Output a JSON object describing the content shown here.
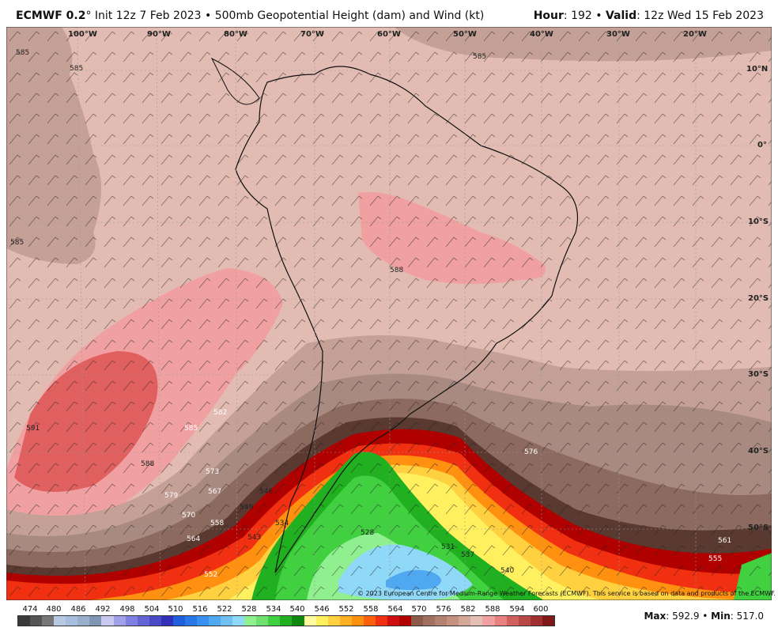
{
  "header": {
    "model": "ECMWF 0.2",
    "degree": "°",
    "init": " Init 12z 7 Feb 2023 • 500mb Geopotential Height (dam) and Wind (kt)",
    "hour_label": "Hour",
    "hour_value": ": 192 • ",
    "valid_label": "Valid",
    "valid_value": ": 12z Wed 15 Feb 2023"
  },
  "longitudes": [
    "100°W",
    "90°W",
    "80°W",
    "70°W",
    "60°W",
    "50°W",
    "40°W",
    "30°W",
    "20°W"
  ],
  "latitudes": [
    "10°N",
    "0°",
    "10°S",
    "20°S",
    "30°S",
    "40°S",
    "50°S"
  ],
  "contour_labels": [
    "585",
    "585",
    "585",
    "585",
    "591",
    "588",
    "585",
    "582",
    "579",
    "576",
    "573",
    "570",
    "567",
    "564",
    "561",
    "558",
    "555",
    "552",
    "549",
    "546",
    "543",
    "540",
    "537",
    "534",
    "531",
    "528",
    "588"
  ],
  "copyright": "© 2023 European Centre for Medium-Range Weather Forecasts (ECMWF). This service is based on data and products of the ECMWF.",
  "colorbar": {
    "labels": [
      "474",
      "480",
      "486",
      "492",
      "498",
      "504",
      "510",
      "516",
      "522",
      "528",
      "534",
      "540",
      "546",
      "552",
      "558",
      "564",
      "570",
      "576",
      "582",
      "588",
      "594",
      "600"
    ],
    "colors": [
      "#3a3a3a",
      "#555555",
      "#777777",
      "#b8c8e0",
      "#a8bede",
      "#98b0cc",
      "#8094b4",
      "#c8c8f0",
      "#a0a0e8",
      "#8080e0",
      "#6464d4",
      "#4a4ac8",
      "#3030b8",
      "#2060e0",
      "#2878e8",
      "#3890f0",
      "#50a8f0",
      "#70c0f4",
      "#90d8f8",
      "#90f090",
      "#70e070",
      "#40d040",
      "#20b020",
      "#108810",
      "#fffca0",
      "#fff060",
      "#ffd040",
      "#ffb020",
      "#ff9010",
      "#ff6010",
      "#f03010",
      "#d01010",
      "#b00000",
      "#8c5a4a",
      "#a07060",
      "#b48070",
      "#c49080",
      "#d4a898",
      "#e4c0b4",
      "#f0a0a0",
      "#e88080",
      "#d06060",
      "#b84848",
      "#a03030",
      "#801818"
    ]
  },
  "stats": {
    "max_label": "Max",
    "max_value": ": 592.9 • ",
    "min_label": "Min",
    "min_value": ": 517.0"
  }
}
